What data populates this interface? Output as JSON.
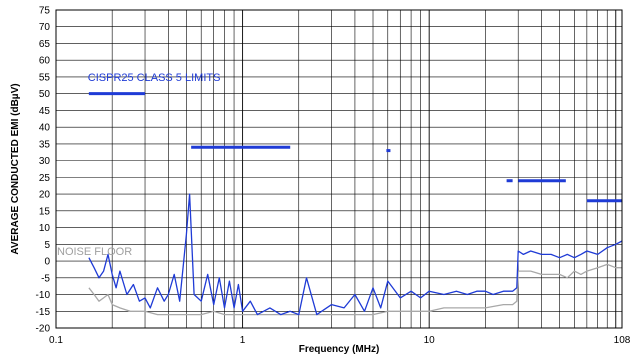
{
  "chart_data": {
    "type": "line",
    "xlabel": "Frequency (MHz)",
    "ylabel": "AVERAGE CONDUCTED EMI (dBµV)",
    "x_scale": "log",
    "xlim": [
      0.1,
      108
    ],
    "ylim": [
      -20,
      75
    ],
    "x_tick_labels": [
      "0.1",
      "1",
      "10",
      "108"
    ],
    "x_tick_values": [
      0.1,
      1,
      10,
      108
    ],
    "y_ticks": [
      -20,
      -15,
      -10,
      -5,
      0,
      5,
      10,
      15,
      20,
      25,
      30,
      35,
      40,
      45,
      50,
      55,
      60,
      65,
      70,
      75
    ],
    "grid": true,
    "annotations": [
      {
        "text": "CISPR25 CLASS 5 LIMITS",
        "color": "#1f3bd6",
        "x": 0.148,
        "y": 55
      },
      {
        "text": "NOISE FLOOR",
        "color": "#a0a0a0",
        "x": 0.1,
        "y": 3
      }
    ],
    "limit_segments": [
      {
        "x": [
          0.15,
          0.3
        ],
        "y": 50
      },
      {
        "x": [
          0.53,
          1.8
        ],
        "y": 34
      },
      {
        "x": [
          5.9,
          6.2
        ],
        "y": 33
      },
      {
        "x": [
          26,
          28
        ],
        "y": 24
      },
      {
        "x": [
          30,
          54
        ],
        "y": 24
      },
      {
        "x": [
          70,
          108
        ],
        "y": 18
      }
    ],
    "series": [
      {
        "color": "#1f3bd6",
        "x": [
          0.15,
          0.16,
          0.17,
          0.18,
          0.19,
          0.2,
          0.21,
          0.22,
          0.24,
          0.26,
          0.28,
          0.3,
          0.32,
          0.35,
          0.38,
          0.4,
          0.43,
          0.46,
          0.5,
          0.52,
          0.55,
          0.6,
          0.65,
          0.7,
          0.75,
          0.8,
          0.85,
          0.9,
          0.95,
          1.0,
          1.1,
          1.2,
          1.4,
          1.6,
          1.8,
          2.0,
          2.2,
          2.5,
          3.0,
          3.5,
          4.0,
          4.5,
          5.0,
          5.5,
          6.0,
          7.0,
          8.0,
          9.0,
          10,
          12,
          14,
          16,
          18,
          20,
          22,
          25,
          28,
          29.5,
          30,
          32,
          35,
          40,
          45,
          50,
          55,
          60,
          65,
          70,
          80,
          90,
          100,
          108
        ],
        "y": [
          1,
          -2,
          -5,
          -3,
          2,
          -4,
          -8,
          -3,
          -10,
          -7,
          -12,
          -11,
          -14,
          -8,
          -12,
          -10,
          -4,
          -12,
          8,
          20,
          -10,
          -12,
          -4,
          -13,
          -5,
          -14,
          -6,
          -14,
          -7,
          -15,
          -12,
          -16,
          -14,
          -16,
          -15,
          -16,
          -5,
          -16,
          -13,
          -14,
          -10,
          -15,
          -8,
          -14,
          -6,
          -11,
          -9,
          -11,
          -9,
          -10,
          -9,
          -10,
          -9,
          -9,
          -10,
          -9,
          -9,
          -8,
          3,
          2,
          3,
          2,
          2,
          1,
          2,
          1,
          2,
          3,
          2,
          4,
          5,
          6
        ]
      },
      {
        "color": "#a8a8a8",
        "x": [
          0.15,
          0.16,
          0.17,
          0.18,
          0.19,
          0.2,
          0.22,
          0.25,
          0.3,
          0.35,
          0.4,
          0.5,
          0.55,
          0.6,
          0.7,
          0.8,
          0.9,
          1.0,
          1.2,
          1.5,
          2.0,
          3.0,
          4.0,
          5.0,
          6.0,
          8.0,
          10,
          12,
          15,
          18,
          20,
          25,
          28,
          29.5,
          30,
          35,
          40,
          45,
          50,
          55,
          60,
          65,
          70,
          80,
          90,
          100,
          108
        ],
        "y": [
          -8,
          -10,
          -12,
          -11,
          -10,
          -13,
          -14,
          -15,
          -15,
          -16,
          -16,
          -16,
          -16,
          -16,
          -15,
          -16,
          -16,
          -16,
          -16,
          -16,
          -16,
          -16,
          -16,
          -16,
          -15,
          -15,
          -15,
          -14,
          -14,
          -14,
          -14,
          -13,
          -13,
          -12,
          -3,
          -3,
          -4,
          -4,
          -4,
          -5,
          -3,
          -4,
          -3,
          -2,
          -1,
          -2,
          -2
        ]
      }
    ]
  }
}
